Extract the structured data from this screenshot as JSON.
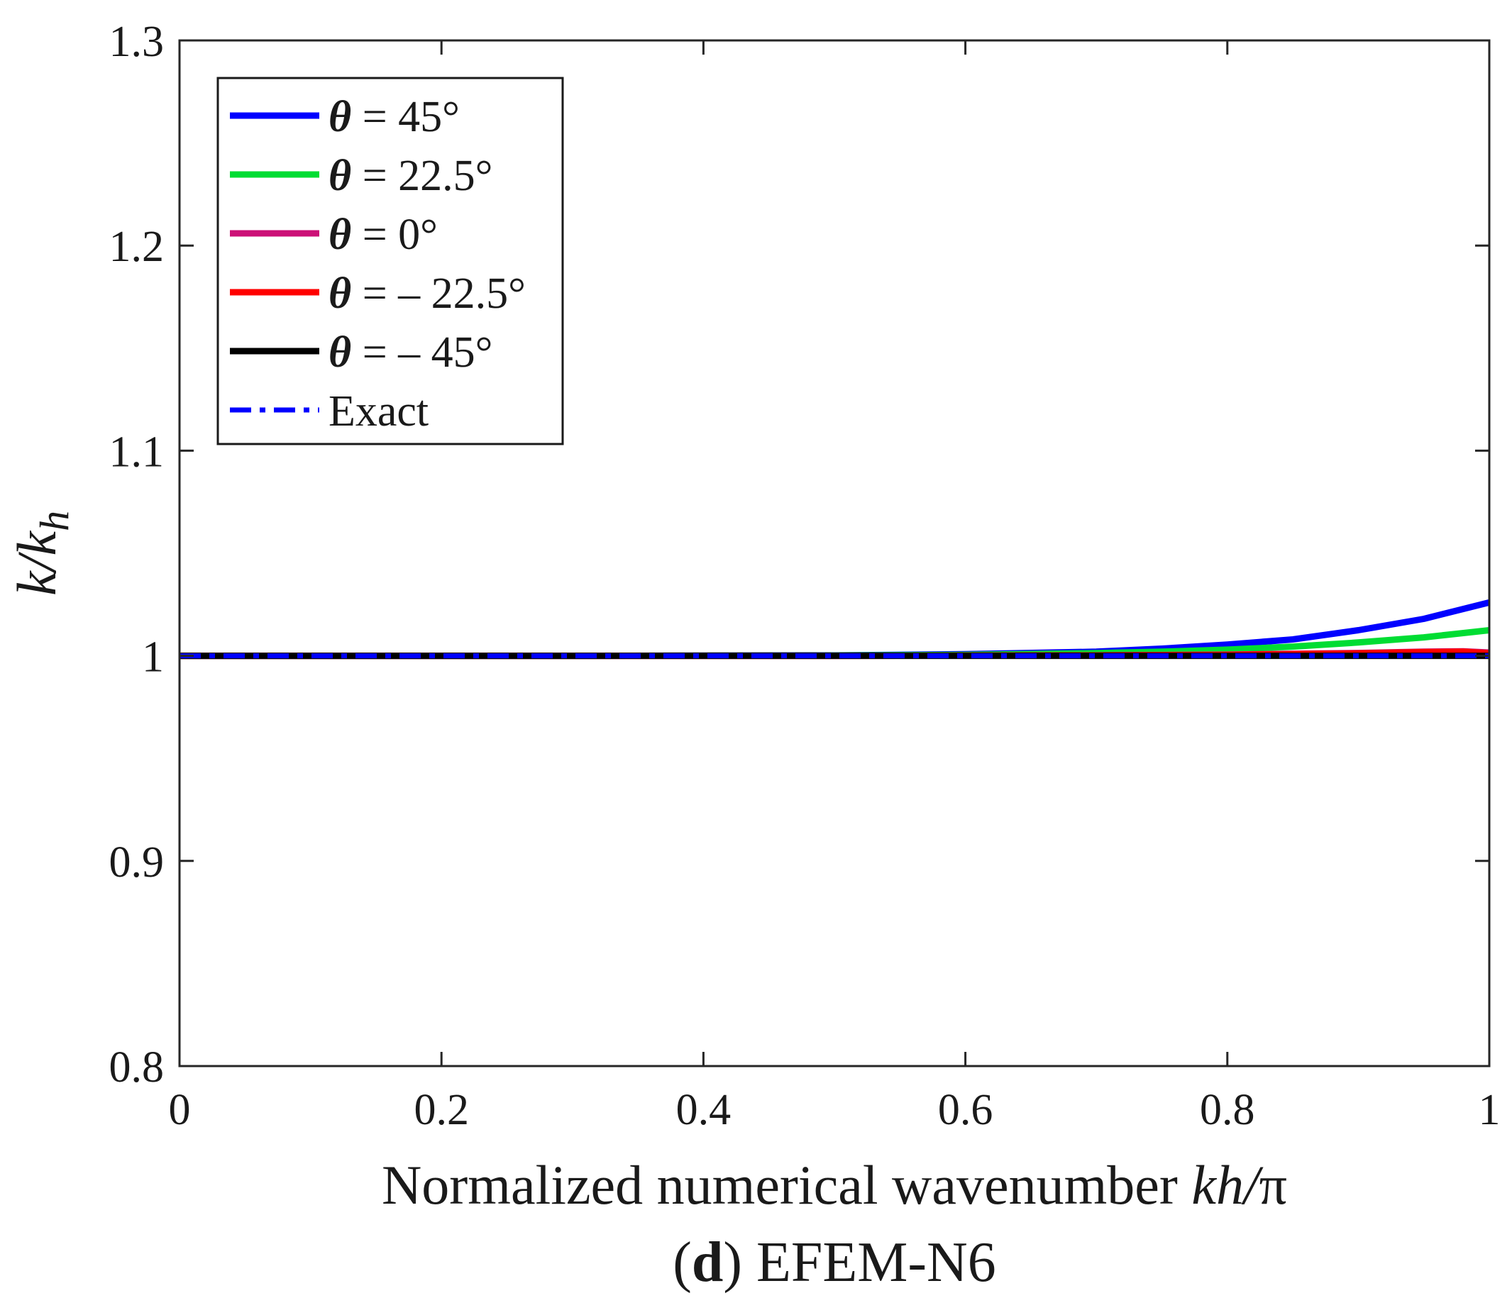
{
  "chart_data": {
    "type": "line",
    "title": "",
    "caption_prefix": "(",
    "caption_letter": "d",
    "caption_suffix": ") EFEM-N6",
    "xlabel_text": "Normalized numerical wavenumber ",
    "xlabel_math": "kh/",
    "xlabel_pi": "π",
    "ylabel_math": "k/k",
    "ylabel_sub": "h",
    "xlim": [
      0,
      1
    ],
    "ylim": [
      0.8,
      1.3
    ],
    "xticks": [
      0,
      0.2,
      0.4,
      0.6,
      0.8,
      1
    ],
    "xtick_labels": [
      "0",
      "0.2",
      "0.4",
      "0.6",
      "0.8",
      "1"
    ],
    "yticks": [
      0.8,
      0.9,
      1.0,
      1.1,
      1.2,
      1.3
    ],
    "ytick_labels": [
      "0.8",
      "0.9",
      "1",
      "1.1",
      "1.2",
      "1.3"
    ],
    "grid": false,
    "legend_position": "top-left",
    "series": [
      {
        "theta_symbol": "θ",
        "label_rest": " = 45°",
        "color": "#0000ff",
        "style": "solid",
        "x": [
          0,
          0.3,
          0.5,
          0.6,
          0.7,
          0.75,
          0.8,
          0.85,
          0.9,
          0.95,
          1.0
        ],
        "y": [
          1.0,
          1.0,
          1.0002,
          1.0008,
          1.002,
          1.0035,
          1.0055,
          1.008,
          1.0125,
          1.018,
          1.026
        ]
      },
      {
        "theta_symbol": "θ",
        "label_rest": " = 22.5°",
        "color": "#00dd33",
        "style": "solid",
        "x": [
          0,
          0.3,
          0.5,
          0.6,
          0.7,
          0.75,
          0.8,
          0.85,
          0.9,
          0.95,
          1.0
        ],
        "y": [
          1.0,
          1.0,
          1.0001,
          1.0005,
          1.0013,
          1.002,
          1.003,
          1.0045,
          1.0065,
          1.009,
          1.0125
        ]
      },
      {
        "theta_symbol": "θ",
        "label_rest": " = 0°",
        "color": "#cc1177",
        "style": "solid",
        "x": [
          0,
          0.5,
          0.7,
          0.8,
          0.9,
          0.95,
          0.98,
          1.0
        ],
        "y": [
          1.0,
          1.0,
          1.0002,
          1.0006,
          1.0014,
          1.002,
          1.0022,
          1.0016
        ]
      },
      {
        "theta_symbol": "θ",
        "label_rest": " = – 22.5°",
        "color": "#ff0000",
        "style": "solid",
        "x": [
          0,
          0.5,
          0.7,
          0.8,
          0.9,
          0.95,
          0.98,
          1.0
        ],
        "y": [
          1.0,
          1.0,
          1.0002,
          1.0005,
          1.0012,
          1.0018,
          1.002,
          1.0012
        ]
      },
      {
        "theta_symbol": "θ",
        "label_rest": " = – 45°",
        "color": "#000000",
        "style": "solid",
        "x": [
          0,
          0.5,
          1.0
        ],
        "y": [
          1.0,
          1.0,
          1.0
        ]
      },
      {
        "theta_symbol": "",
        "label_rest": "Exact",
        "color": "#0000ff",
        "style": "dashdot",
        "x": [
          0,
          1.0
        ],
        "y": [
          1.0,
          1.0
        ]
      }
    ]
  }
}
